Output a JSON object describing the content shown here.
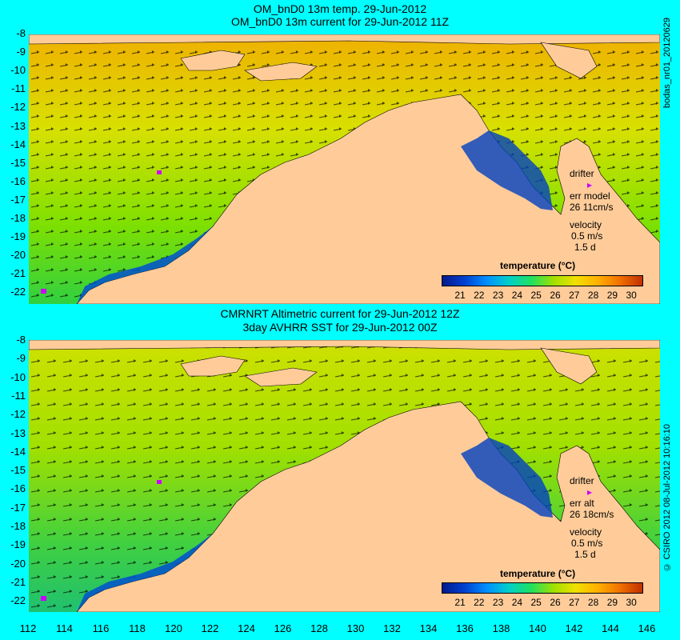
{
  "panels": [
    {
      "title_line1": "OM_bnD0 13m temp. 29-Jun-2012",
      "title_line2": "OM_bnD0 13m current for 29-Jun-2012 11Z",
      "side_label": "bodas_nr01_20120629",
      "legend": {
        "drifter": "drifter",
        "err": "err model",
        "err_value": "26 11cm/s",
        "velocity": "velocity",
        "speed": "0.5 m/s",
        "duration": "1.5 d"
      }
    },
    {
      "title_line1": "CMRNRT Altimetric current for 29-Jun-2012 12Z",
      "title_line2": "3day AVHRR SST for 29-Jun-2012 00Z",
      "side_label": "© CSIRO 2012   08-Jul-2012 10:16:10",
      "legend": {
        "drifter": "drifter",
        "err": "err alt",
        "err_value": "26 18cm/s",
        "velocity": "velocity",
        "speed": "0.5 m/s",
        "duration": "1.5 d"
      }
    }
  ],
  "colorbar": {
    "title": "temperature (°C)",
    "ticks": [
      "21",
      "22",
      "23",
      "24",
      "25",
      "26",
      "27",
      "28",
      "29",
      "30"
    ],
    "colors": [
      "#001a8c",
      "#0040d0",
      "#0090ff",
      "#00d0c8",
      "#20e060",
      "#a0e000",
      "#f0e000",
      "#ffb000",
      "#f07000",
      "#c03000"
    ]
  },
  "y_ticks": [
    "-8",
    "-9",
    "-10",
    "-11",
    "-12",
    "-13",
    "-14",
    "-15",
    "-16",
    "-17",
    "-18",
    "-19",
    "-20",
    "-21",
    "-22"
  ],
  "x_ticks": [
    "112",
    "114",
    "116",
    "118",
    "120",
    "122",
    "124",
    "126",
    "128",
    "130",
    "132",
    "134",
    "136",
    "138",
    "140",
    "142",
    "144",
    "146"
  ],
  "colors": {
    "background": "#00ffff",
    "land": "#ffcc99",
    "ocean_warm": "#f0c000",
    "ocean_mid": "#a0e000",
    "ocean_cool": "#20c060"
  }
}
